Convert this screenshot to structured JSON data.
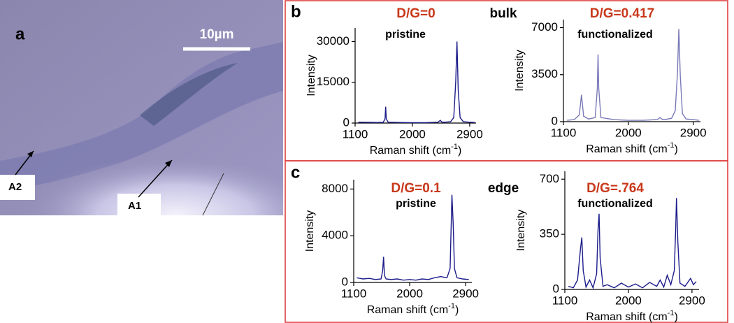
{
  "image": {
    "letter": "a",
    "scale": "10µm",
    "labels": [
      "A2",
      "A1"
    ]
  },
  "panel_labels": [
    "b",
    "c"
  ],
  "chart_data": [
    {
      "type": "line",
      "title": "D/G=0",
      "subtitle": "pristine",
      "tag": "bulk",
      "ylabel": "Intensity",
      "xlabel": [
        "Raman shift (cm",
        "-1",
        ")"
      ],
      "color": "#1c1c8a",
      "x": [
        1150,
        1300,
        1450,
        1540,
        1570,
        1580,
        1590,
        1620,
        1800,
        2000,
        2200,
        2400,
        2440,
        2460,
        2500,
        2600,
        2650,
        2680,
        2700,
        2720,
        2750,
        2800,
        2900,
        2980
      ],
      "values": [
        300,
        250,
        200,
        250,
        1500,
        6000,
        1500,
        300,
        200,
        150,
        150,
        300,
        1000,
        400,
        300,
        500,
        2000,
        15000,
        30000,
        12000,
        2000,
        500,
        300,
        200
      ],
      "xlim": [
        1100,
        3000
      ],
      "xticks": [
        1100,
        2000,
        2900
      ],
      "ylim": [
        0,
        35000
      ],
      "yticks": [
        0,
        15000,
        30000
      ]
    },
    {
      "type": "line",
      "title": "D/G=0.417",
      "subtitle": "functionalized",
      "ylabel": "Intensity",
      "xlabel": [
        "Raman shift (cm",
        "-1",
        ")"
      ],
      "color": "#7a7ab8",
      "x": [
        1150,
        1250,
        1320,
        1340,
        1350,
        1360,
        1380,
        1450,
        1540,
        1570,
        1580,
        1590,
        1620,
        1800,
        2000,
        2200,
        2400,
        2440,
        2460,
        2500,
        2600,
        2650,
        2680,
        2700,
        2720,
        2750,
        2800,
        2900,
        2980
      ],
      "values": [
        100,
        150,
        500,
        1500,
        2000,
        1500,
        400,
        200,
        300,
        2500,
        5000,
        2500,
        300,
        150,
        100,
        100,
        150,
        300,
        200,
        150,
        250,
        800,
        3500,
        6900,
        3500,
        600,
        200,
        150,
        100
      ],
      "xlim": [
        1100,
        3000
      ],
      "xticks": [
        1100,
        2000,
        2900
      ],
      "ylim": [
        0,
        7600
      ],
      "yticks": [
        0,
        3500,
        7000
      ]
    },
    {
      "type": "line",
      "title": "D/G=0.1",
      "subtitle": "pristine",
      "tag": "edge",
      "ylabel": "Intensity",
      "xlabel": [
        "Raman shift (cm",
        "-1",
        ")"
      ],
      "color": "#1c1c8a",
      "x": [
        1150,
        1250,
        1350,
        1450,
        1540,
        1565,
        1580,
        1595,
        1620,
        1700,
        1800,
        1900,
        2000,
        2100,
        2200,
        2300,
        2400,
        2500,
        2600,
        2650,
        2680,
        2700,
        2720,
        2760,
        2850,
        2950
      ],
      "values": [
        400,
        300,
        350,
        250,
        300,
        1000,
        2200,
        600,
        300,
        250,
        300,
        200,
        250,
        200,
        300,
        250,
        400,
        500,
        400,
        1200,
        7500,
        5000,
        1200,
        400,
        300,
        250
      ],
      "xlim": [
        1100,
        3000
      ],
      "xticks": [
        1100,
        2000,
        2900
      ],
      "ylim": [
        0,
        8800
      ],
      "yticks": [
        0,
        4000,
        8000
      ]
    },
    {
      "type": "line",
      "title": "D/G=.764",
      "subtitle": "functionalized",
      "ylabel": "Intensity",
      "xlabel": [
        "Raman shift (cm",
        "-1",
        ")"
      ],
      "color": "#1c1c8a",
      "x": [
        1150,
        1220,
        1280,
        1320,
        1340,
        1360,
        1400,
        1450,
        1500,
        1550,
        1570,
        1585,
        1600,
        1640,
        1700,
        1800,
        1900,
        2000,
        2100,
        2200,
        2300,
        2400,
        2450,
        2500,
        2550,
        2600,
        2650,
        2670,
        2680,
        2700,
        2730,
        2800,
        2880,
        2920,
        2960
      ],
      "values": [
        20,
        10,
        60,
        250,
        330,
        120,
        15,
        60,
        10,
        100,
        380,
        480,
        200,
        20,
        30,
        10,
        40,
        15,
        35,
        10,
        45,
        20,
        60,
        15,
        90,
        30,
        120,
        400,
        580,
        300,
        40,
        20,
        70,
        30,
        50
      ],
      "xlim": [
        1100,
        3000
      ],
      "xticks": [
        1100,
        2000,
        2900
      ],
      "ylim": [
        0,
        750
      ],
      "yticks": [
        0,
        350,
        700
      ]
    }
  ]
}
